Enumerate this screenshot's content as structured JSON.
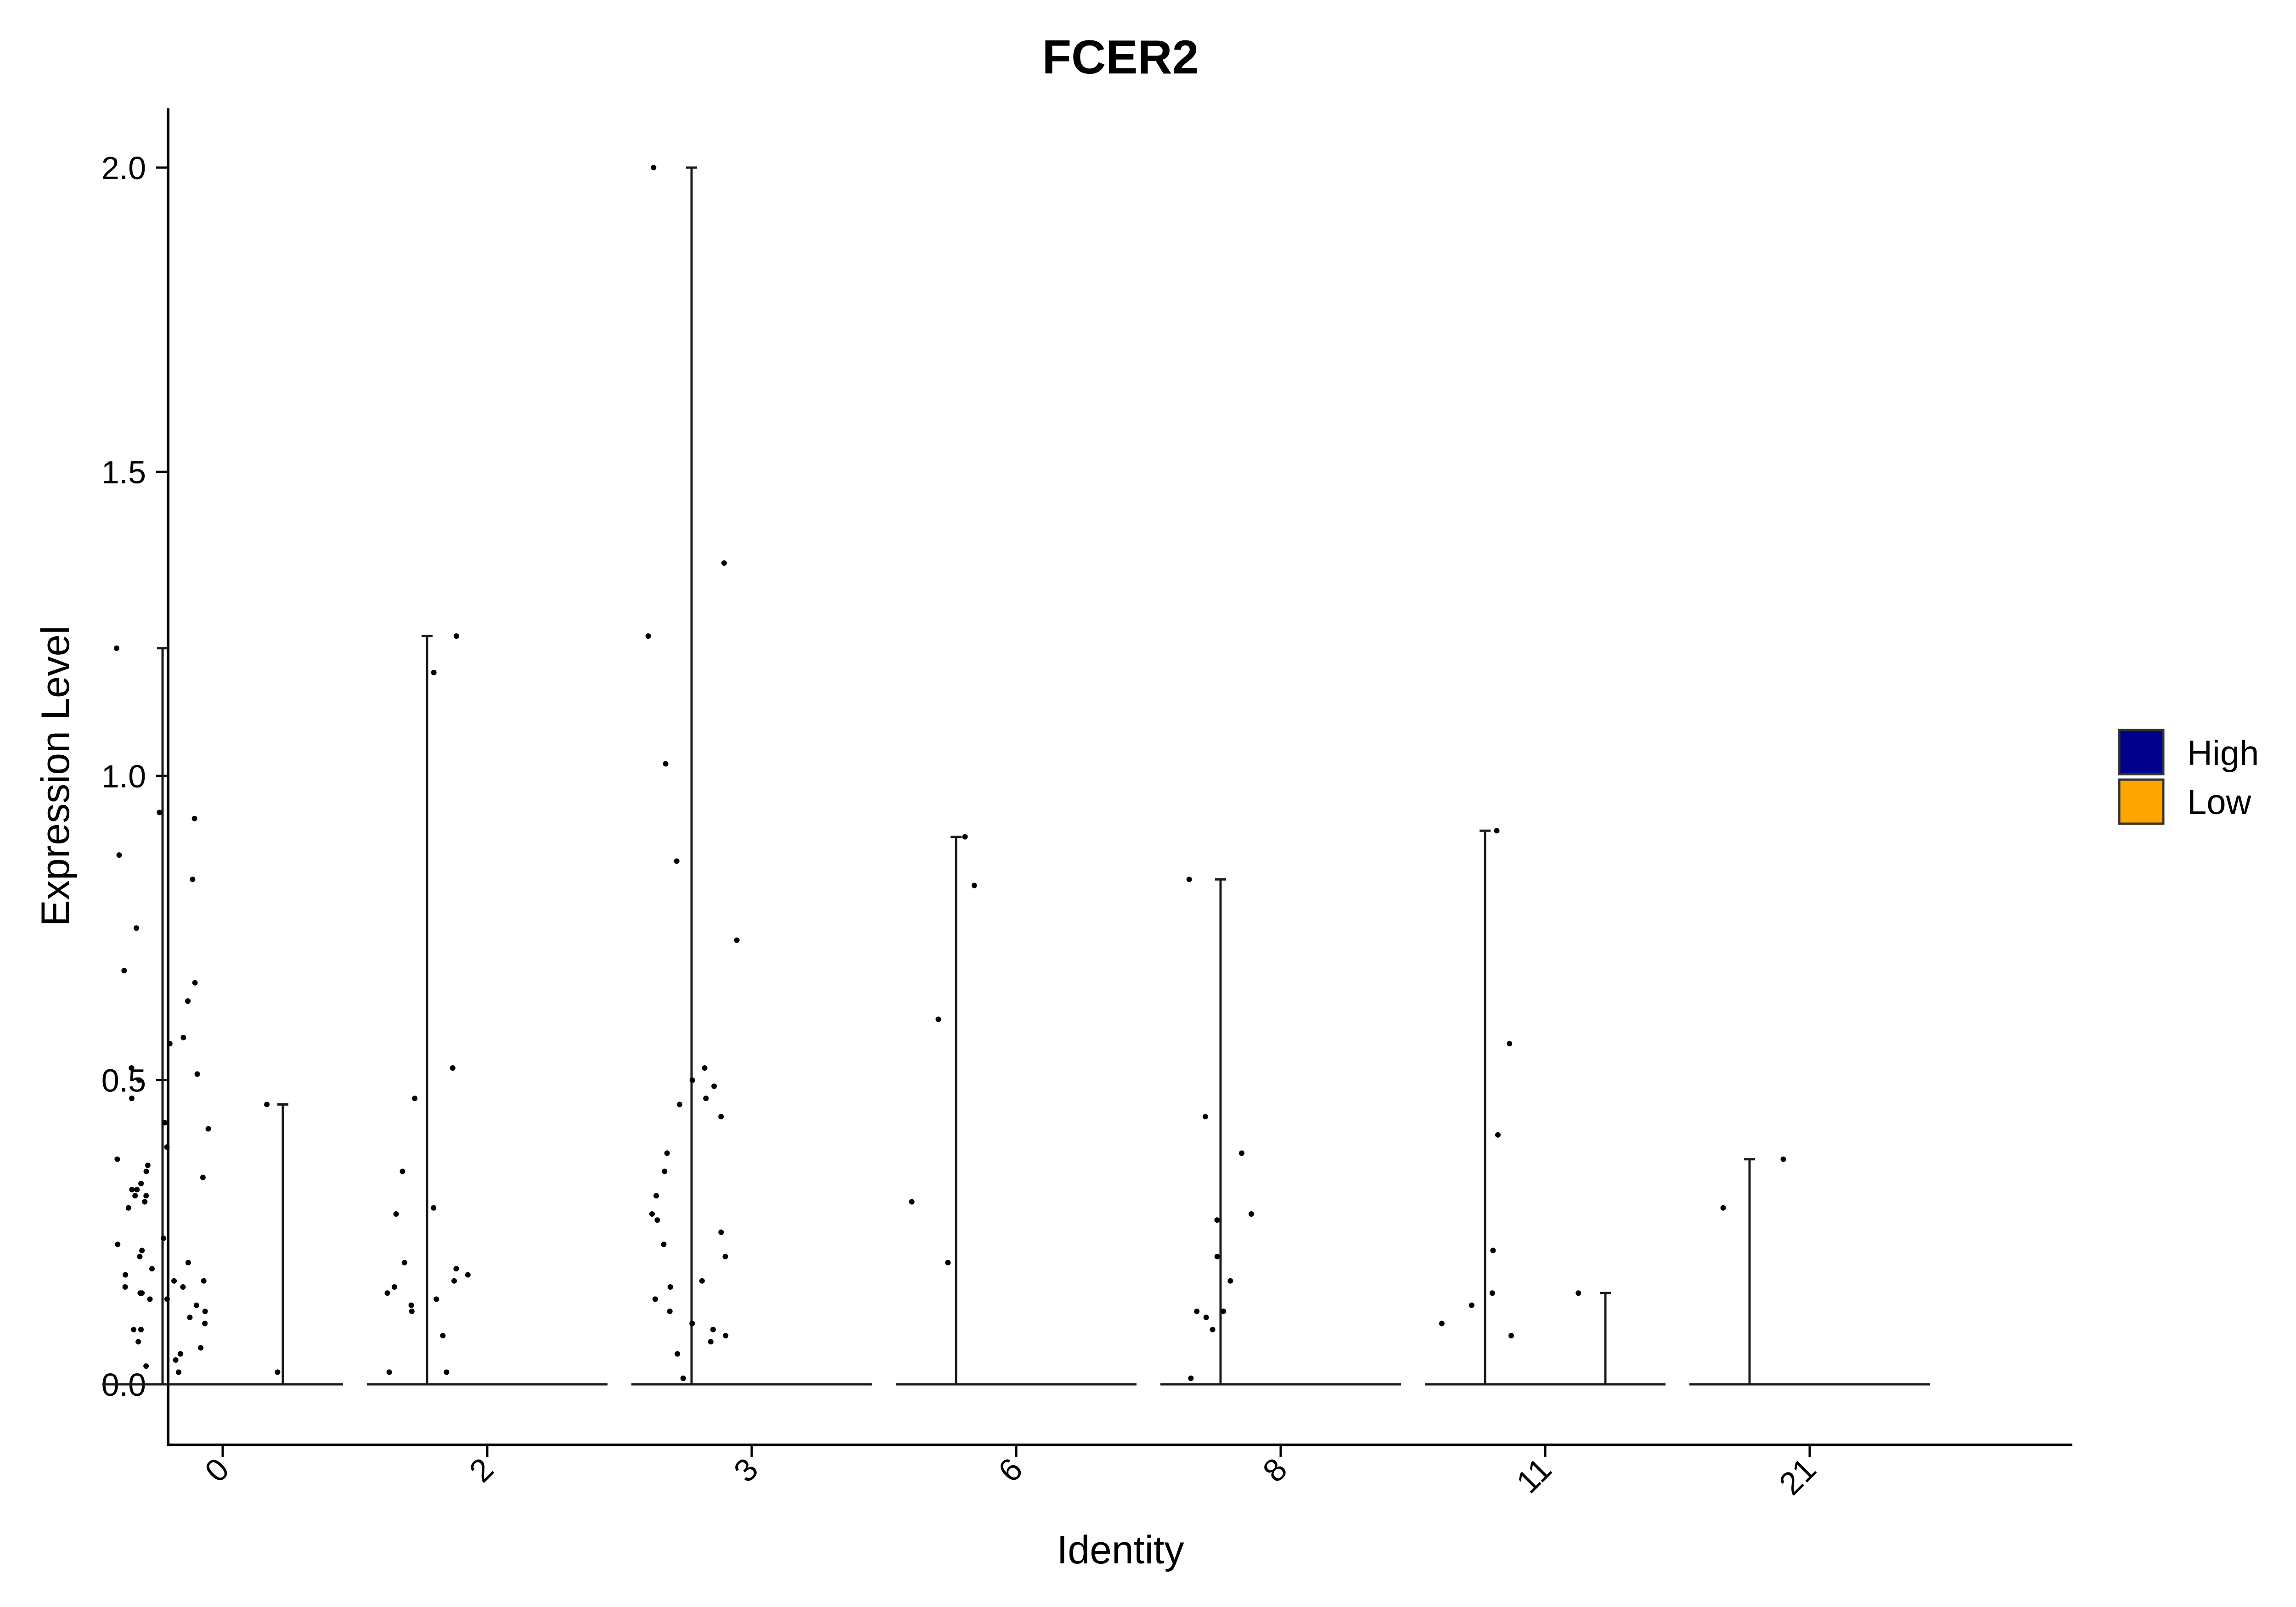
{
  "chart_data": {
    "type": "violin",
    "title": "FCER2",
    "xlabel": "Identity",
    "ylabel": "Expression Level",
    "ylim": [
      -0.1,
      2.1
    ],
    "yticks": [
      0.0,
      0.5,
      1.0,
      1.5,
      2.0
    ],
    "ytick_labels": [
      "0.0",
      "0.5",
      "1.0",
      "1.5",
      "2.0"
    ],
    "categories": [
      "0",
      "2",
      "3",
      "6",
      "8",
      "11",
      "21"
    ],
    "tick_rotation_deg": -45,
    "legend": {
      "placement": "right",
      "entries": [
        {
          "label": "High",
          "color": "#00008B"
        },
        {
          "label": "Low",
          "color": "#FFA500"
        }
      ]
    },
    "series": [
      {
        "name": "High",
        "color": "#00008B",
        "max": [
          1.21,
          1.23,
          2.0,
          0.9,
          0.83,
          0.91,
          0.37
        ],
        "points": [
          [
            1.21,
            0.94,
            0.93,
            0.87,
            0.83,
            0.75,
            0.68,
            0.66,
            0.63,
            0.63,
            0.57,
            0.56,
            0.52,
            0.51,
            0.5,
            0.47,
            0.43,
            0.42,
            0.39,
            0.37,
            0.36,
            0.35,
            0.34,
            0.33,
            0.32,
            0.32,
            0.31,
            0.31,
            0.3,
            0.29,
            0.24,
            0.23,
            0.22,
            0.21,
            0.2,
            0.19,
            0.18,
            0.17,
            0.17,
            0.16,
            0.16,
            0.15,
            0.15,
            0.14,
            0.14,
            0.13,
            0.12,
            0.11,
            0.1,
            0.09,
            0.09,
            0.07,
            0.06,
            0.05,
            0.04,
            0.03,
            0.02
          ],
          [
            1.23,
            1.17,
            0.52,
            0.47,
            0.35,
            0.29,
            0.28,
            0.2,
            0.19,
            0.18,
            0.17,
            0.16,
            0.15,
            0.14,
            0.13,
            0.12,
            0.08,
            0.02,
            0.02
          ],
          [
            2.0,
            1.35,
            1.23,
            1.02,
            0.86,
            0.73,
            0.52,
            0.5,
            0.49,
            0.47,
            0.46,
            0.44,
            0.38,
            0.35,
            0.31,
            0.28,
            0.27,
            0.25,
            0.23,
            0.21,
            0.17,
            0.16,
            0.14,
            0.12,
            0.1,
            0.09,
            0.08,
            0.07,
            0.05,
            0.01
          ],
          [
            0.9,
            0.82,
            0.6,
            0.3,
            0.2
          ],
          [
            0.83,
            0.44,
            0.38,
            0.28,
            0.27,
            0.21,
            0.17,
            0.12,
            0.12,
            0.11,
            0.09,
            0.01
          ],
          [
            0.91,
            0.56,
            0.41,
            0.22,
            0.15,
            0.13,
            0.1,
            0.08
          ],
          [
            0.37,
            0.29
          ]
        ]
      },
      {
        "name": "Low",
        "color": "#FFA500",
        "max": [
          0.46,
          0.0,
          0.0,
          0.0,
          0.0,
          0.15,
          0.0
        ],
        "points": [
          [
            0.46,
            0.02
          ],
          [],
          [],
          [],
          [],
          [
            0.15
          ],
          []
        ]
      }
    ]
  }
}
